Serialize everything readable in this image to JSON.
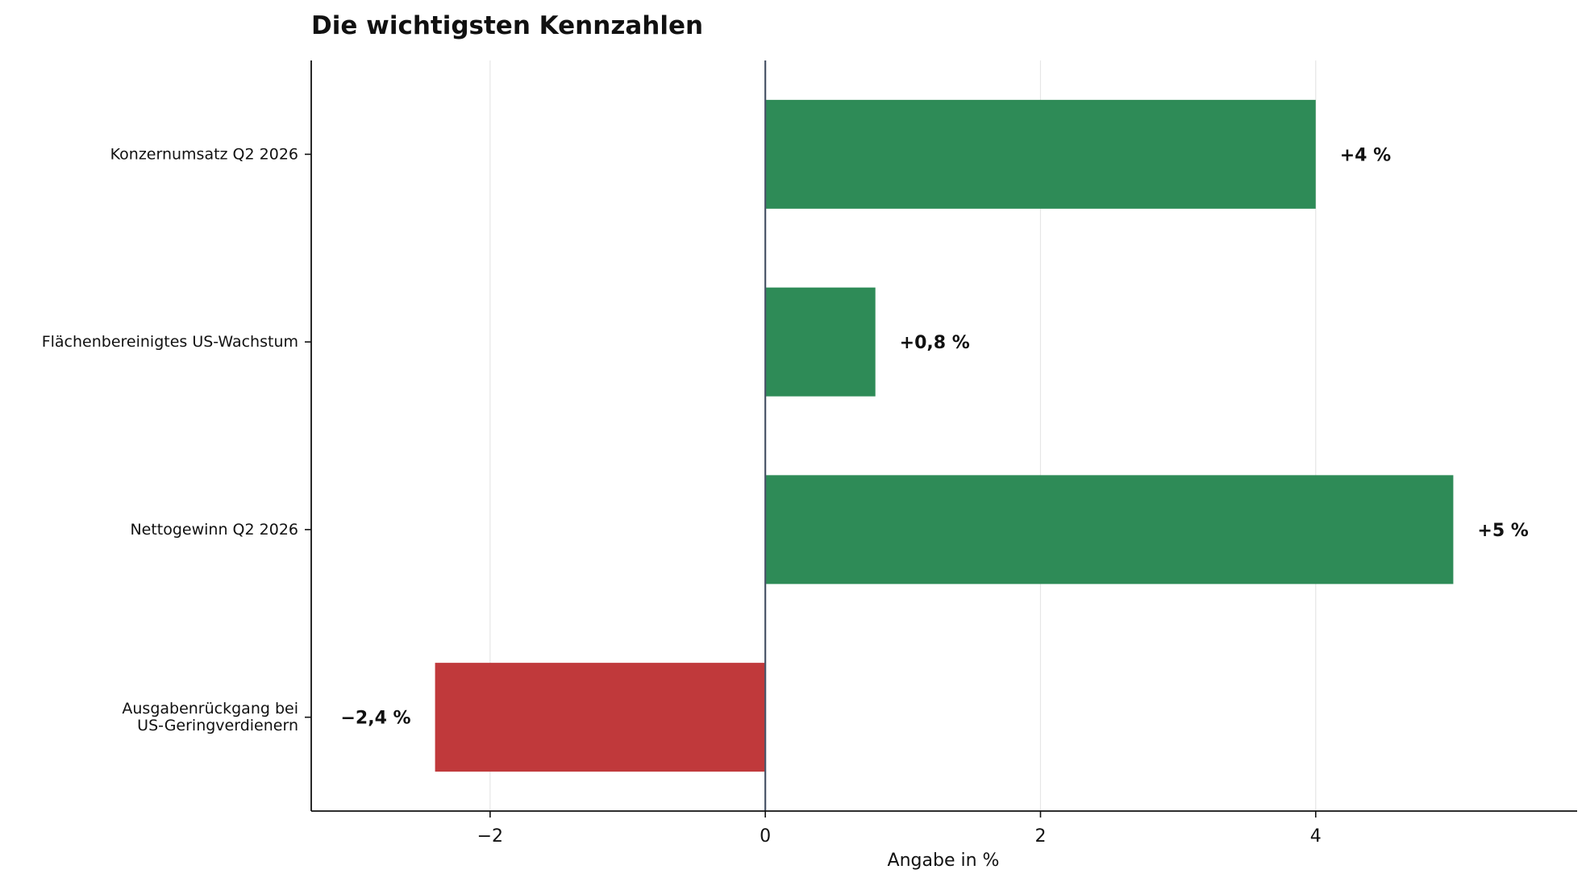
{
  "chart_data": {
    "type": "bar",
    "orientation": "horizontal",
    "title": "Die wichtigsten Kennzahlen",
    "xlabel": "Angabe in %",
    "ylabel": "",
    "categories": [
      [
        "Konzernumsatz Q2 2026"
      ],
      [
        "Flächenbereinigtes US-Wachstum"
      ],
      [
        "Nettogewinn Q2 2026"
      ],
      [
        "Ausgabenrückgang bei",
        "US-Geringverdienern"
      ]
    ],
    "values": [
      4,
      0.8,
      5,
      -2.4
    ],
    "data_labels": [
      "+4 %",
      "+0,8 %",
      "+5 %",
      "−2,4 %"
    ],
    "colors": [
      "#2e8b57",
      "#2e8b57",
      "#2e8b57",
      "#c0393b"
    ],
    "xlim": [
      -3.3,
      5.9
    ],
    "xticks": [
      -2,
      0,
      2,
      4
    ],
    "xtick_labels": [
      "−2",
      "0",
      "2",
      "4"
    ],
    "grid": "vertical",
    "legend": "none"
  }
}
